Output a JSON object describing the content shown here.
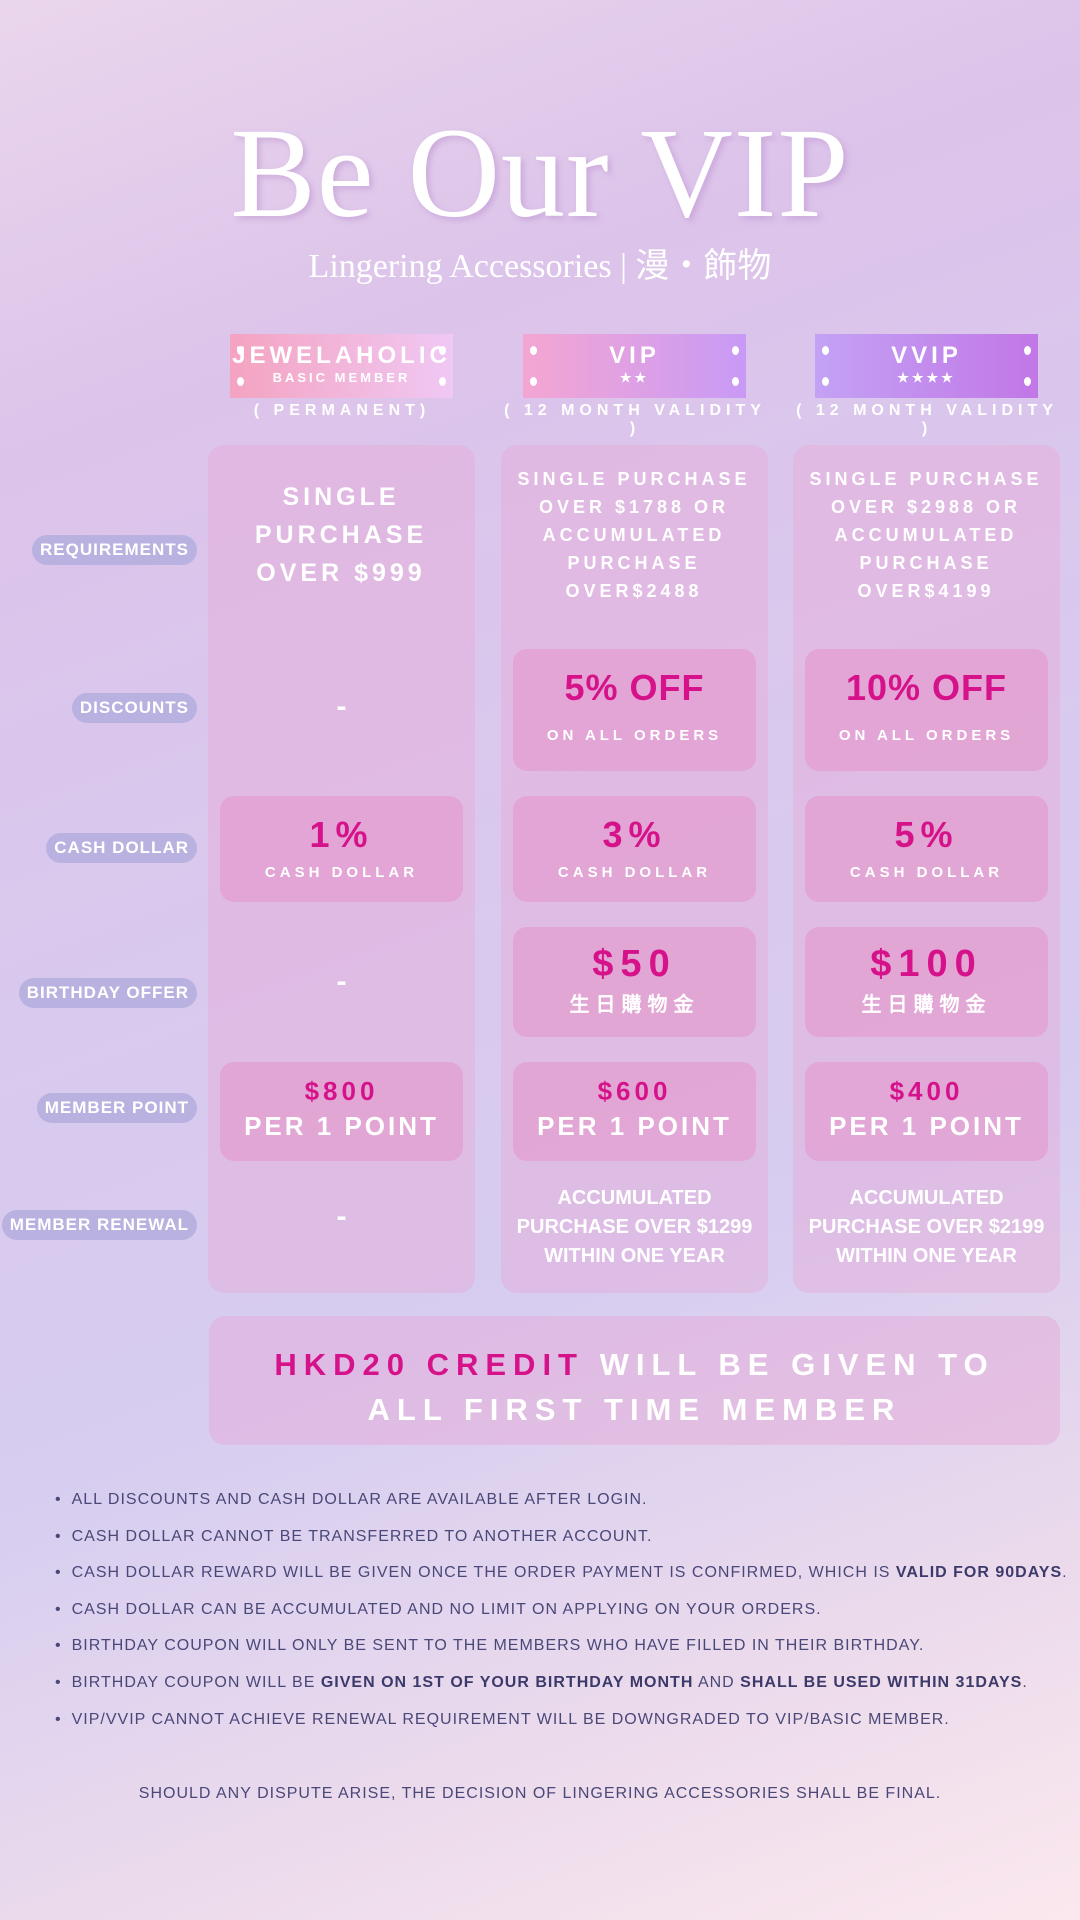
{
  "header": {
    "title": "Be Our VIP",
    "subtitle": "Lingering Accessories | 漫・飾物"
  },
  "tiers": [
    {
      "name": "JEWELAHOLIC",
      "sub": "BASIC MEMBER",
      "validity": "( PERMANENT)",
      "requirement": "SINGLE PURCHASE OVER $999",
      "discount": "-",
      "discount_sub": "",
      "cash": "1%",
      "cash_sub": "CASH DOLLAR",
      "birthday": "-",
      "birthday_sub": "",
      "point_amount": "$800",
      "point_unit": "PER 1 POINT",
      "renewal": "-"
    },
    {
      "name": "VIP",
      "sub": "★★",
      "validity": "( 12 MONTH VALIDITY )",
      "requirement": "SINGLE PURCHASE OVER $1788 OR ACCUMULATED PURCHASE OVER$2488",
      "discount": "5% OFF",
      "discount_sub": "ON ALL ORDERS",
      "cash": "3%",
      "cash_sub": "CASH DOLLAR",
      "birthday": "$50",
      "birthday_sub": "生日購物金",
      "point_amount": "$600",
      "point_unit": "PER 1 POINT",
      "renewal": "ACCUMULATED PURCHASE OVER $1299 WITHIN ONE YEAR"
    },
    {
      "name": "VVIP",
      "sub": "★★★★",
      "validity": "( 12 MONTH VALIDITY )",
      "requirement": "SINGLE PURCHASE OVER $2988 OR ACCUMULATED PURCHASE OVER$4199",
      "discount": "10% OFF",
      "discount_sub": "ON ALL ORDERS",
      "cash": "5%",
      "cash_sub": "CASH DOLLAR",
      "birthday": "$100",
      "birthday_sub": "生日購物金",
      "point_amount": "$400",
      "point_unit": "PER 1 POINT",
      "renewal": "ACCUMULATED PURCHASE OVER $2199 WITHIN ONE YEAR"
    }
  ],
  "row_labels": {
    "requirements": "REQUIREMENTS",
    "discounts": "DISCOUNTS",
    "cash": "CASH DOLLAR",
    "birthday": "BIRTHDAY OFFER",
    "point": "MEMBER POINT",
    "renewal": "MEMBER RENEWAL"
  },
  "credit": {
    "highlight": "HKD20 CREDIT",
    "rest1": " WILL BE GIVEN TO",
    "line2": "ALL FIRST TIME MEMBER"
  },
  "notes": [
    {
      "a": "ALL DISCOUNTS AND CASH DOLLAR ARE AVAILABLE AFTER LOGIN."
    },
    {
      "a": "CASH DOLLAR CANNOT BE TRANSFERRED TO ANOTHER ACCOUNT."
    },
    {
      "a": "CASH DOLLAR REWARD WILL BE GIVEN ONCE THE ORDER PAYMENT IS CONFIRMED, WHICH IS ",
      "b": "VALID FOR 90DAYS",
      "c": "."
    },
    {
      "a": "CASH DOLLAR CAN BE ACCUMULATED AND NO LIMIT ON APPLYING ON YOUR ORDERS."
    },
    {
      "a": "BIRTHDAY COUPON WILL ONLY BE SENT TO THE MEMBERS WHO HAVE FILLED IN THEIR BIRTHDAY."
    },
    {
      "a": "BIRTHDAY COUPON WILL BE ",
      "b": "GIVEN ON 1ST OF YOUR BIRTHDAY MONTH",
      "c": " AND ",
      "d": "SHALL BE USED WITHIN 31DAYS",
      "e": "."
    },
    {
      "a": "VIP/VVIP CANNOT ACHIEVE RENEWAL REQUIREMENT WILL BE DOWNGRADED TO VIP/BASIC MEMBER."
    }
  ],
  "footer": "SHOULD ANY DISPUTE ARISE, THE DECISION OF LINGERING ACCESSORIES SHALL BE FINAL.",
  "colors": {
    "accent": "#d6128a",
    "label_pill": "#b9b2e0",
    "text_dark": "#4a4878"
  }
}
